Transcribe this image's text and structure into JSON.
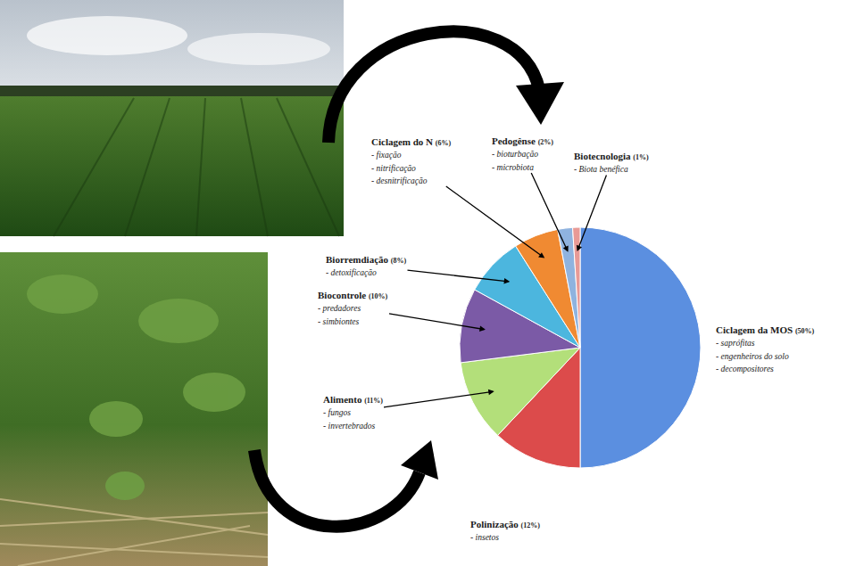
{
  "chart_data": {
    "type": "pie",
    "categories": [
      "Ciclagem da MOS",
      "Polinização",
      "Alimento",
      "Biocontrole",
      "Biorremdiação",
      "Ciclagem do N",
      "Pedogênse",
      "Biotecnologia"
    ],
    "values": [
      50,
      12,
      11,
      10,
      8,
      6,
      2,
      1
    ],
    "value_labels": [
      "(50%)",
      "(12%)",
      "(11%)",
      "(10%)",
      "(8%)",
      "(6%)",
      "(2%)",
      "(1%)"
    ],
    "details": [
      [
        "- saprófitas",
        "- engenheiros do solo",
        "- decompositores"
      ],
      [
        "- insetos"
      ],
      [
        "- fungos",
        "- invertebrados"
      ],
      [
        "- predadores",
        "- simbiontes"
      ],
      [
        "- detoxificação"
      ],
      [
        "- fixação",
        "- nitrificação",
        "- desnitrificação"
      ],
      [
        "- bioturbação",
        "- microbiota"
      ],
      [
        "- Biota benéfica"
      ]
    ],
    "colors": [
      "#5b8fe0",
      "#dc4b4b",
      "#b3df7a",
      "#7b5aa6",
      "#4cb6de",
      "#f08a32",
      "#8fb3df",
      "#e89a96"
    ]
  }
}
